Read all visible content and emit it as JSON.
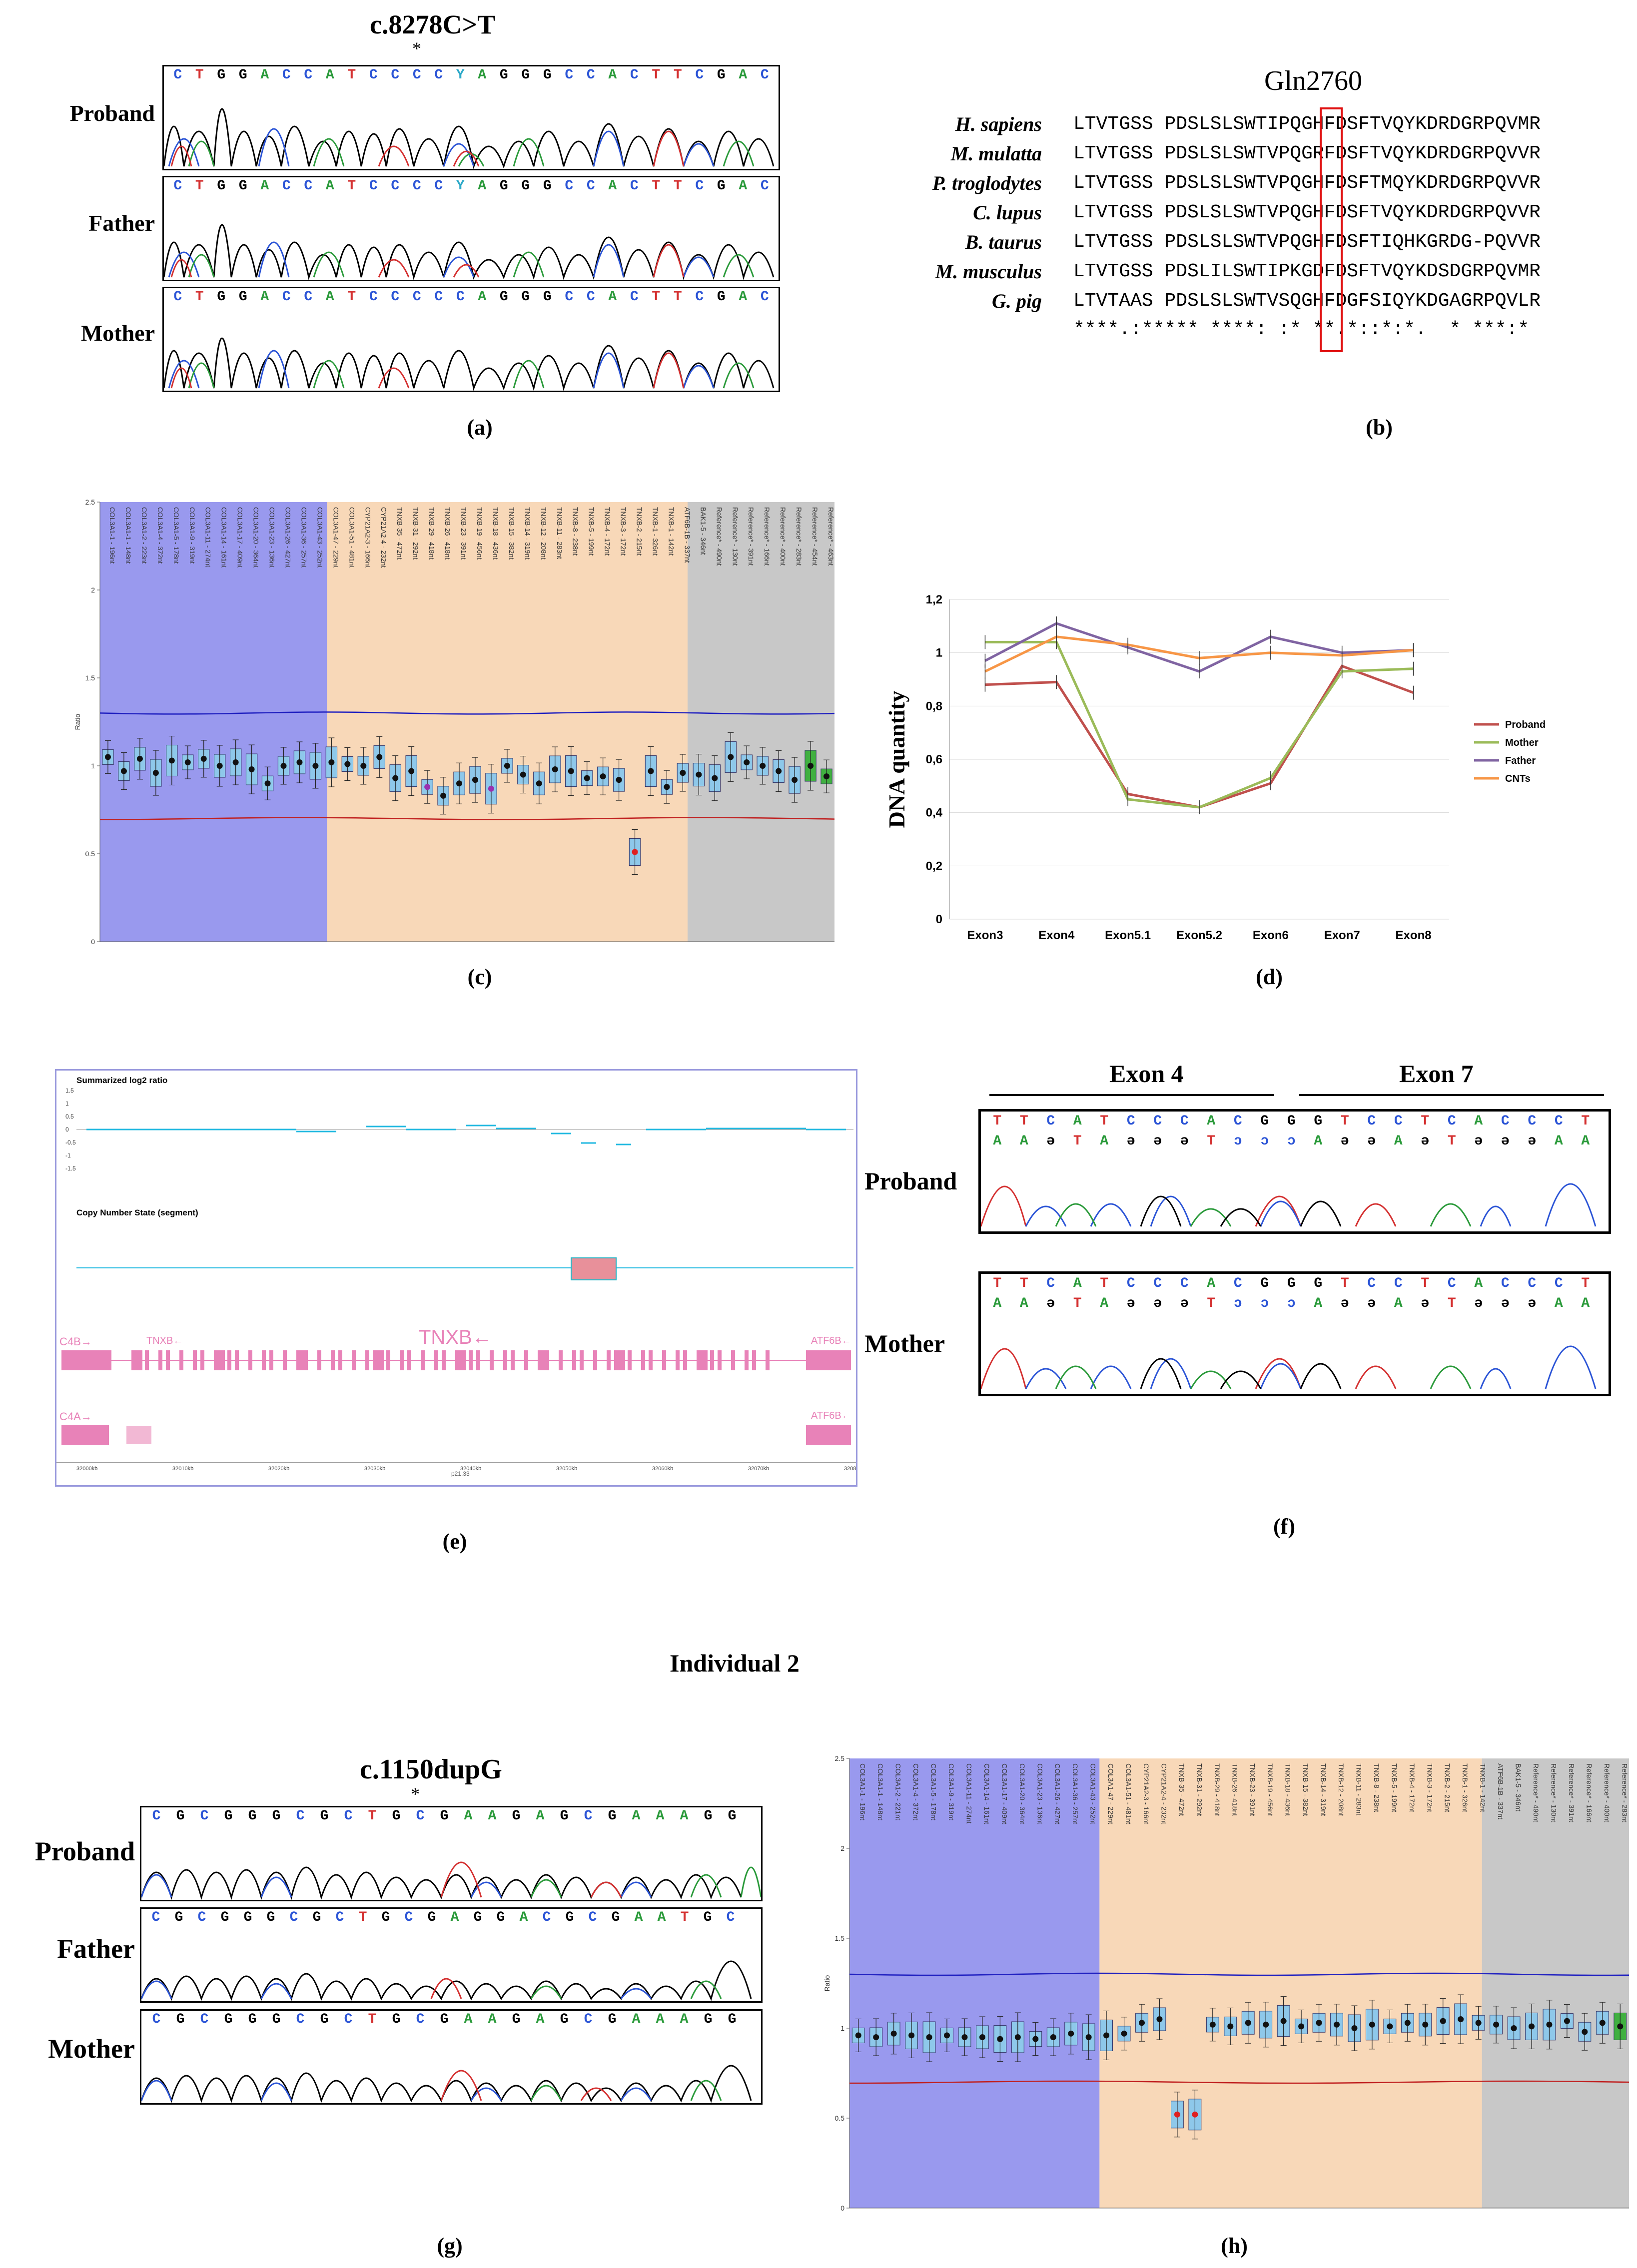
{
  "panels": {
    "a": {
      "label": "(a)",
      "title": "c.8278C>T",
      "asterisk": "*",
      "rows": [
        "Proband",
        "Father",
        "Mother"
      ],
      "bases_top": [
        "C",
        "T",
        "G",
        "G",
        "A",
        "C",
        "C",
        "A",
        "T",
        "C",
        "C",
        "C",
        "C",
        "Y",
        "A",
        "G",
        "G",
        "G",
        "C",
        "C",
        "A",
        "C",
        "T",
        "T",
        "C",
        "G",
        "A",
        "C"
      ],
      "bases_mother": [
        "C",
        "T",
        "G",
        "G",
        "A",
        "C",
        "C",
        "A",
        "T",
        "C",
        "C",
        "C",
        "C",
        "C",
        "A",
        "G",
        "G",
        "G",
        "C",
        "C",
        "A",
        "C",
        "T",
        "T",
        "C",
        "G",
        "A",
        "C"
      ]
    },
    "b": {
      "label": "(b)",
      "title": "Gln2760",
      "alignment": [
        {
          "species": "H. sapiens",
          "seq": "LTVTGSS PDSLSLSWTIPQGHFDSFTVQYKDRDGRPQVMR"
        },
        {
          "species": "M. mulatta",
          "seq": "LTVTGSS PDSLSLSWTVPQGRFDSFTVQYKDRDGRPQVVR"
        },
        {
          "species": "P. troglodytes",
          "seq": "LTVTGSS PDSLSLSWTVPQGHFDSFTMQYKDRDGRPQVVR"
        },
        {
          "species": "C. lupus",
          "seq": "LTVTGSS PDSLSLSWTVPQGHFDSFTVQYKDRDGRPQVVR"
        },
        {
          "species": "B. taurus",
          "seq": "LTVTGSS PDSLSLSWTVPQGHFDSFTIQHKGRDG-PQVVR"
        },
        {
          "species": "M. musculus",
          "seq": "LTVTGSS PDSLILSWTIPKGDFDSFTVQYKDSDGRPQVMR"
        },
        {
          "species": "G. pig",
          "seq": "LTVTAAS PDSLSLSWTVSQGHFDGFSIQYKDGAGRPQVLR"
        }
      ],
      "conservation": "****.:***** ****: :* **.*::*:*.  * ***:*"
    },
    "c": {
      "label": "(c)"
    },
    "d": {
      "label": "(d)"
    },
    "e": {
      "label": "(e)",
      "track1_title": "Summarized log2 ratio",
      "track2_title": "Copy Number State (segment)",
      "gene_main": "TNXB←",
      "gene_labels": [
        "C4B→",
        "TNXB←",
        "ATF6B←",
        "C4A→",
        "ATF6B←"
      ],
      "y_ticks": [
        "1.5",
        "1",
        "0.5",
        "0",
        "-0.5",
        "-1",
        "-1.5"
      ],
      "x_ticks": [
        "32000kb",
        "32010kb",
        "32020kb",
        "32030kb",
        "32040kb",
        "32050kb",
        "32060kb",
        "32070kb",
        "32080kb"
      ],
      "band": "p21.33"
    },
    "f": {
      "label": "(f)",
      "exon_left": "Exon 4",
      "exon_right": "Exon 7",
      "rows": [
        "Proband",
        "Mother"
      ],
      "bases_top": [
        "T",
        "T",
        "C",
        "A",
        "T",
        "C",
        "C",
        "C",
        "A",
        "C",
        "G",
        "G",
        "G",
        "T",
        "C",
        "C",
        "T",
        "C",
        "A",
        "C",
        "C",
        "C",
        "T"
      ],
      "bases_bottom": [
        "A",
        "A",
        "ə",
        "T",
        "A",
        "ə",
        "ə",
        "ə",
        "T",
        "ɔ",
        "ɔ",
        "ɔ",
        "A",
        "ə",
        "ə",
        "A",
        "ə",
        "T",
        "ə",
        "ə",
        "ə",
        "A",
        "A"
      ]
    },
    "individual_heading": "Individual 2",
    "g": {
      "label": "(g)",
      "title": "c.1150dupG",
      "asterisk": "*",
      "rows": [
        "Proband",
        "Father",
        "Mother"
      ],
      "bases_top": [
        "C",
        "G",
        "C",
        "G",
        "G",
        "G",
        "C",
        "G",
        "C",
        "T",
        "G",
        "C",
        "G",
        "A",
        "A",
        "G",
        "A",
        "G",
        "C",
        "G",
        "A",
        "A",
        "A",
        "G",
        "G"
      ],
      "bases_father": [
        "C",
        "G",
        "C",
        "G",
        "G",
        "G",
        "C",
        "G",
        "C",
        "T",
        "G",
        "C",
        "G",
        "A",
        "G",
        "G",
        "A",
        "C",
        "G",
        "C",
        "G",
        "A",
        "A",
        "T",
        "G",
        "C"
      ]
    },
    "h": {
      "label": "(h)"
    }
  },
  "chart_data": [
    {
      "id": "c",
      "type": "scatter",
      "title": "",
      "ylabel": "Ratio",
      "ylim": [
        0,
        2.5
      ],
      "yticks": [
        "0",
        "0.5",
        "1",
        "1.5",
        "2",
        "2.5"
      ],
      "regions": [
        {
          "name": "COL3A1",
          "from": 0,
          "to": 17,
          "color": "#9999ee"
        },
        {
          "name": "TNXB",
          "from": 17,
          "to": 44,
          "color": "#f8d8b8"
        },
        {
          "name": "Reference",
          "from": 44,
          "to": 55,
          "color": "#c8c8c8"
        }
      ],
      "probes": [
        "COL3A1-1 - 196nt",
        "COL3A1-1 - 148nt",
        "COL3A1-2 - 223nt",
        "COL3A1-4 - 372nt",
        "COL3A1-5 - 178nt",
        "COL3A1-9 - 319nt",
        "COL3A1-11 - 274nt",
        "COL3A1-14 - 161nt",
        "COL3A1-17 - 409nt",
        "COL3A1-20 - 364nt",
        "COL3A1-23 - 136nt",
        "COL3A1-26 - 427nt",
        "COL3A1-36 - 257nt",
        "COL3A1-43 - 252nt",
        "COL3A1-47 - 229nt",
        "COL3A1-51 - 481nt",
        "CYP21A2-3 - 166nt",
        "CYP21A2-4 - 232nt",
        "TNXB-35 - 472nt",
        "TNXB-31 - 292nt",
        "TNXB-29 - 418nt",
        "TNXB-26 - 418nt",
        "TNXB-23 - 391nt",
        "TNXB-19 - 456nt",
        "TNXB-18 - 436nt",
        "TNXB-15 - 382nt",
        "TNXB-14 - 319nt",
        "TNXB-12 - 208nt",
        "TNXB-11 - 283nt",
        "TNXB-8 - 238nt",
        "TNXB-5 - 199nt",
        "TNXB-4 - 172nt",
        "TNXB-3 - 172nt",
        "TNXB-2 - 215nt",
        "TNXB-1 - 326nt",
        "TNXB-1 - 142nt",
        "ATF6B-1B - 337nt",
        "BAK1-5 - 346nt",
        "Reference* - 490nt",
        "Reference* - 130nt",
        "Reference* - 391nt",
        "Reference* - 166nt",
        "Reference* - 400nt",
        "Reference* - 283nt",
        "Reference* - 454nt",
        "Reference* - 463nt"
      ],
      "values": [
        1.05,
        0.97,
        1.04,
        0.96,
        1.03,
        1.02,
        1.04,
        1.0,
        1.02,
        0.98,
        0.9,
        1.0,
        1.02,
        1.0,
        1.02,
        1.01,
        1.0,
        1.05,
        0.93,
        0.97,
        0.88,
        0.83,
        0.9,
        0.92,
        0.87,
        1.0,
        0.95,
        0.9,
        0.98,
        0.97,
        0.93,
        0.94,
        0.92,
        0.51,
        0.97,
        0.88,
        0.96,
        0.95,
        0.93,
        1.05,
        1.02,
        1.0,
        0.97,
        0.92,
        1.0,
        0.94
      ],
      "upper_threshold": 1.3,
      "lower_threshold": 0.7
    },
    {
      "id": "d",
      "type": "line",
      "title": "",
      "ylabel": "DNA quantity",
      "xlabel": "",
      "categories": [
        "Exon3",
        "Exon4",
        "Exon5.1",
        "Exon5.2",
        "Exon6",
        "Exon7",
        "Exon8"
      ],
      "ylim": [
        0,
        1.2
      ],
      "yticks": [
        "0",
        "0,2",
        "0,4",
        "0,6",
        "0,8",
        "1",
        "1,2"
      ],
      "series": [
        {
          "name": "Proband",
          "color": "#c0504d",
          "values": [
            0.88,
            0.89,
            0.47,
            0.42,
            0.51,
            0.95,
            0.85
          ]
        },
        {
          "name": "Mother",
          "color": "#9bbb59",
          "values": [
            1.04,
            1.04,
            0.45,
            0.42,
            0.53,
            0.93,
            0.94
          ]
        },
        {
          "name": "Father",
          "color": "#8064a2",
          "values": [
            0.97,
            1.11,
            1.02,
            0.93,
            1.06,
            1.0,
            1.01
          ]
        },
        {
          "name": "CNTs",
          "color": "#f79646",
          "values": [
            0.93,
            1.06,
            1.03,
            0.98,
            1.0,
            0.99,
            1.01
          ]
        }
      ],
      "legend": "right"
    },
    {
      "id": "h",
      "type": "scatter",
      "title": "",
      "ylabel": "Ratio",
      "ylim": [
        0,
        2.5
      ],
      "yticks": [
        "0",
        "0.5",
        "1",
        "1.5",
        "2",
        "2.5"
      ],
      "regions": [
        {
          "name": "COL3A1",
          "from": 0,
          "to": 17,
          "color": "#9999ee"
        },
        {
          "name": "TNXB",
          "from": 17,
          "to": 43,
          "color": "#f8d8b8"
        },
        {
          "name": "Reference",
          "from": 43,
          "to": 53,
          "color": "#c8c8c8"
        }
      ],
      "probes": [
        "COL3A1-1 - 196nt",
        "COL3A1-1 - 148nt",
        "COL3A1-2 - 221nt",
        "COL3A1-4 - 372nt",
        "COL3A1-5 - 178nt",
        "COL3A1-9 - 319nt",
        "COL3A1-11 - 274nt",
        "COL3A1-14 - 161nt",
        "COL3A1-17 - 409nt",
        "COL3A1-20 - 364nt",
        "COL3A1-23 - 136nt",
        "COL3A1-26 - 427nt",
        "COL3A1-36 - 257nt",
        "COL3A1-43 - 252nt",
        "COL3A1-47 - 229nt",
        "COL3A1-51 - 481nt",
        "CYP21A2-3 - 166nt",
        "CYP21A2-4 - 232nt",
        "TNXB-35 - 472nt",
        "TNXB-31 - 292nt",
        "TNXB-29 - 418nt",
        "TNXB-26 - 418nt",
        "TNXB-23 - 391nt",
        "TNXB-19 - 456nt",
        "TNXB-18 - 436nt",
        "TNXB-15 - 382nt",
        "TNXB-14 - 319nt",
        "TNXB-12 - 208nt",
        "TNXB-11 - 283nt",
        "TNXB-8 - 238nt",
        "TNXB-5 - 199nt",
        "TNXB-4 - 172nt",
        "TNXB-3 - 172nt",
        "TNXB-2 - 215nt",
        "TNXB-1 - 326nt",
        "TNXB-1 - 142nt",
        "ATF6B-1B - 337nt",
        "BAK1-5 - 346nt",
        "Reference* - 490nt",
        "Reference* - 130nt",
        "Reference* - 391nt",
        "Reference* - 166nt",
        "Reference* - 400nt",
        "Reference* - 283nt"
      ],
      "values": [
        0.96,
        0.95,
        0.97,
        0.96,
        0.95,
        0.96,
        0.95,
        0.95,
        0.94,
        0.95,
        0.94,
        0.95,
        0.97,
        0.95,
        0.96,
        0.97,
        1.03,
        1.05,
        0.52,
        0.52,
        1.02,
        1.01,
        1.03,
        1.02,
        1.04,
        1.01,
        1.03,
        1.02,
        1.0,
        1.02,
        1.01,
        1.03,
        1.02,
        1.04,
        1.05,
        1.03,
        1.02,
        1.0,
        1.01,
        1.02,
        1.04,
        0.98,
        1.03,
        1.01
      ],
      "upper_threshold": 1.3,
      "lower_threshold": 0.7
    }
  ]
}
